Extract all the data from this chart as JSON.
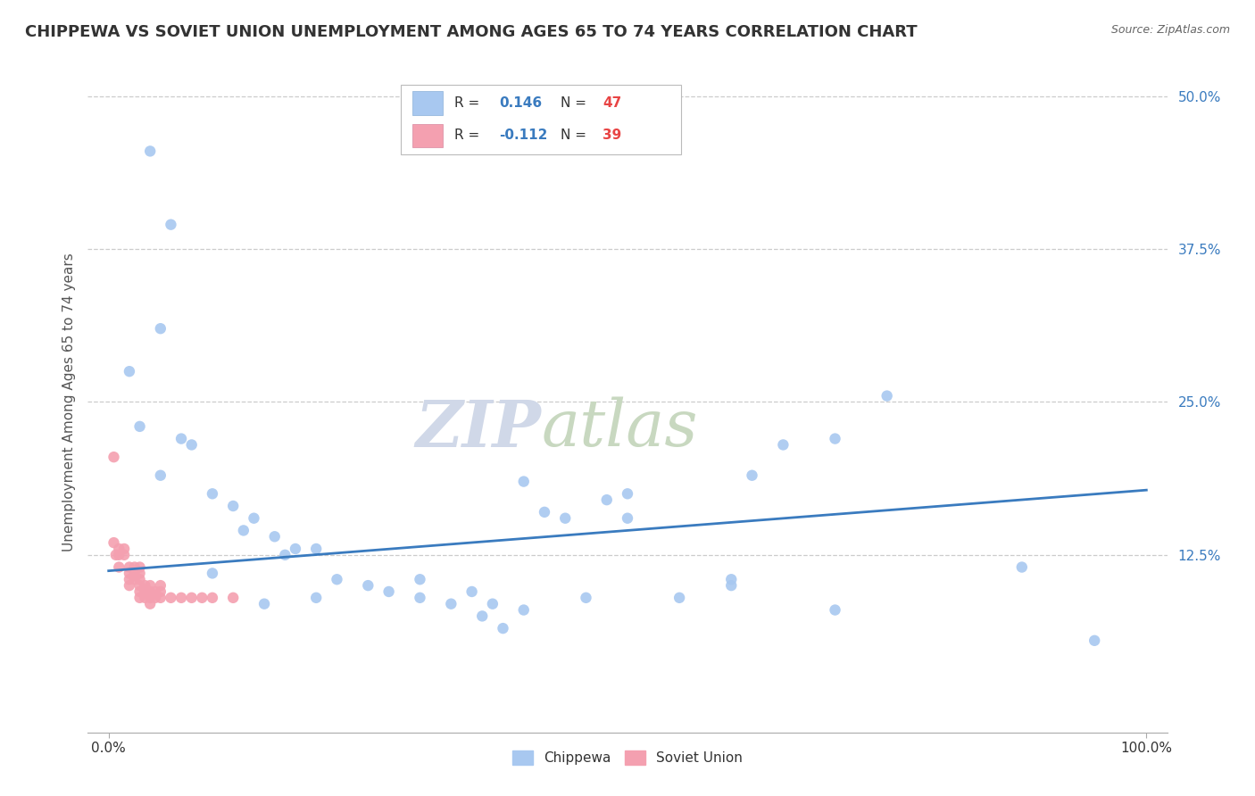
{
  "title": "CHIPPEWA VS SOVIET UNION UNEMPLOYMENT AMONG AGES 65 TO 74 YEARS CORRELATION CHART",
  "source": "Source: ZipAtlas.com",
  "ylabel": "Unemployment Among Ages 65 to 74 years",
  "xlim": [
    -0.02,
    1.02
  ],
  "ylim": [
    -0.02,
    0.52
  ],
  "xticks": [
    0.0,
    1.0
  ],
  "xticklabels": [
    "0.0%",
    "100.0%"
  ],
  "yticks": [
    0.0,
    0.125,
    0.25,
    0.375,
    0.5
  ],
  "yticklabels": [
    "",
    "12.5%",
    "25.0%",
    "37.5%",
    "50.0%"
  ],
  "chippewa_color": "#a8c8f0",
  "soviet_color": "#f4a0b0",
  "trend_color": "#3a7bbf",
  "background_color": "#ffffff",
  "grid_color": "#cccccc",
  "R_chippewa": "0.146",
  "N_chippewa": "47",
  "R_soviet": "-0.112",
  "N_soviet": "39",
  "legend_label_chippewa": "Chippewa",
  "legend_label_soviet": "Soviet Union",
  "chippewa_x": [
    0.04,
    0.06,
    0.05,
    0.02,
    0.03,
    0.07,
    0.08,
    0.05,
    0.1,
    0.12,
    0.14,
    0.13,
    0.16,
    0.18,
    0.17,
    0.2,
    0.22,
    0.25,
    0.27,
    0.3,
    0.33,
    0.35,
    0.36,
    0.38,
    0.37,
    0.4,
    0.42,
    0.44,
    0.46,
    0.48,
    0.5,
    0.55,
    0.6,
    0.62,
    0.65,
    0.7,
    0.75,
    0.88,
    0.95,
    0.1,
    0.15,
    0.2,
    0.3,
    0.4,
    0.5,
    0.6,
    0.7
  ],
  "chippewa_y": [
    0.455,
    0.395,
    0.31,
    0.275,
    0.23,
    0.22,
    0.215,
    0.19,
    0.175,
    0.165,
    0.155,
    0.145,
    0.14,
    0.13,
    0.125,
    0.13,
    0.105,
    0.1,
    0.095,
    0.105,
    0.085,
    0.095,
    0.075,
    0.065,
    0.085,
    0.185,
    0.16,
    0.155,
    0.09,
    0.17,
    0.175,
    0.09,
    0.1,
    0.19,
    0.215,
    0.22,
    0.255,
    0.115,
    0.055,
    0.11,
    0.085,
    0.09,
    0.09,
    0.08,
    0.155,
    0.105,
    0.08
  ],
  "soviet_x": [
    0.005,
    0.005,
    0.007,
    0.01,
    0.01,
    0.01,
    0.015,
    0.015,
    0.02,
    0.02,
    0.02,
    0.02,
    0.025,
    0.025,
    0.025,
    0.03,
    0.03,
    0.03,
    0.03,
    0.03,
    0.03,
    0.035,
    0.035,
    0.035,
    0.04,
    0.04,
    0.04,
    0.04,
    0.045,
    0.045,
    0.05,
    0.05,
    0.05,
    0.06,
    0.07,
    0.08,
    0.09,
    0.1,
    0.12
  ],
  "soviet_y": [
    0.205,
    0.135,
    0.125,
    0.125,
    0.13,
    0.115,
    0.125,
    0.13,
    0.1,
    0.105,
    0.11,
    0.115,
    0.105,
    0.11,
    0.115,
    0.09,
    0.095,
    0.1,
    0.105,
    0.11,
    0.115,
    0.09,
    0.095,
    0.1,
    0.085,
    0.09,
    0.095,
    0.1,
    0.09,
    0.095,
    0.09,
    0.095,
    0.1,
    0.09,
    0.09,
    0.09,
    0.09,
    0.09,
    0.09
  ],
  "trend_x_start": 0.0,
  "trend_x_end": 1.0,
  "trend_y_start": 0.112,
  "trend_y_end": 0.178,
  "watermark_zip": "ZIP",
  "watermark_atlas": "atlas",
  "title_fontsize": 13,
  "axis_label_fontsize": 11,
  "tick_fontsize": 11,
  "dot_size": 80,
  "legend_R_color": "#3a7bbf",
  "legend_N_color": "#e84444",
  "legend_text_color": "#333333",
  "ytick_color": "#3a7bbf",
  "source_color": "#666666"
}
